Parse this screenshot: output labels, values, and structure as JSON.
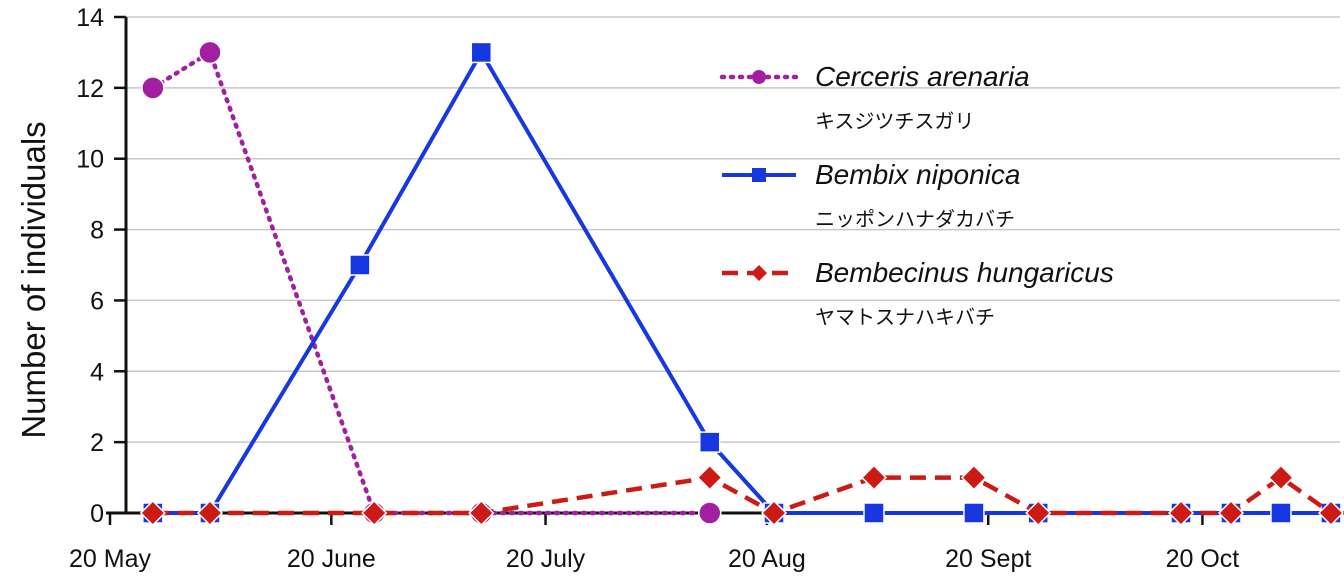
{
  "chart_data": {
    "type": "line",
    "title": "",
    "xlabel": "",
    "ylabel": "Number of individuals",
    "ylim": [
      0,
      14
    ],
    "yticks": [
      0,
      2,
      4,
      6,
      8,
      10,
      12,
      14
    ],
    "xlim": [
      "2009-05-20",
      "2009-10-30"
    ],
    "xticks": [
      {
        "date": "2009-05-20",
        "label": "20 May"
      },
      {
        "date": "2009-06-20",
        "label": "20 June"
      },
      {
        "date": "2009-07-20",
        "label": "20 July"
      },
      {
        "date": "2009-08-20",
        "label": "20 Aug"
      },
      {
        "date": "2009-09-20",
        "label": "20 Sept"
      },
      {
        "date": "2009-10-20",
        "label": "20 Oct"
      }
    ],
    "grid": true,
    "legend_position": "top-right",
    "series": [
      {
        "name": "Cerceris arenaria",
        "name_ja": "キスジツチスガリ",
        "color": "#a21fa2",
        "line_style": "dotted",
        "marker": "circle",
        "x": [
          "2009-05-26",
          "2009-06-03",
          "2009-06-26",
          "2009-07-11",
          "2009-08-12"
        ],
        "y": [
          12,
          13,
          0,
          0,
          0
        ]
      },
      {
        "name": "Bembix niponica",
        "name_ja": "ニッポンハナダカバチ",
        "color": "#1737e0",
        "line_style": "solid",
        "marker": "square",
        "x": [
          "2009-05-26",
          "2009-06-03",
          "2009-06-24",
          "2009-07-11",
          "2009-08-12",
          "2009-08-21",
          "2009-09-04",
          "2009-09-18",
          "2009-09-27",
          "2009-10-17",
          "2009-10-24",
          "2009-10-31",
          "2009-11-07"
        ],
        "y": [
          0,
          0,
          7,
          13,
          2,
          0,
          0,
          0,
          0,
          0,
          0,
          0,
          0
        ]
      },
      {
        "name": "Bembecinus hungaricus",
        "name_ja": "ヤマトスナハキバチ",
        "color": "#cc1b14",
        "line_style": "dashed",
        "marker": "diamond",
        "x": [
          "2009-05-26",
          "2009-06-03",
          "2009-06-26",
          "2009-07-11",
          "2009-08-12",
          "2009-08-21",
          "2009-09-04",
          "2009-09-18",
          "2009-09-27",
          "2009-10-17",
          "2009-10-24",
          "2009-10-31",
          "2009-11-07"
        ],
        "y": [
          0,
          0,
          0,
          0,
          1,
          0,
          1,
          1,
          0,
          0,
          0,
          1,
          0
        ]
      }
    ]
  }
}
